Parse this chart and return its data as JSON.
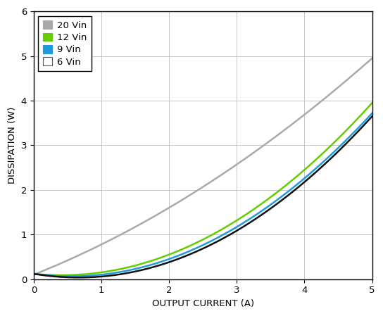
{
  "xlabel": "OUTPUT CURRENT (A)",
  "ylabel": "DISSIPATION (W)",
  "xlim": [
    0,
    5
  ],
  "ylim": [
    0,
    6
  ],
  "xticks": [
    0,
    1,
    2,
    3,
    4,
    5
  ],
  "yticks": [
    0,
    1,
    2,
    3,
    4,
    5,
    6
  ],
  "curves": [
    {
      "label": "20 Vin",
      "color": "#aaaaaa",
      "lw": 1.8,
      "p0": 0.1,
      "p2": 1.6,
      "p5": 4.95
    },
    {
      "label": "12 Vin",
      "color": "#66cc00",
      "lw": 1.8,
      "p0": 0.12,
      "p2": 0.55,
      "p5": 3.95
    },
    {
      "label": "9 Vin",
      "color": "#2299dd",
      "lw": 1.8,
      "p0": 0.12,
      "p2": 0.45,
      "p5": 3.72
    },
    {
      "label": "6 Vin",
      "color": "#111111",
      "lw": 1.8,
      "p0": 0.12,
      "p2": 0.38,
      "p5": 3.65
    }
  ],
  "legend_colors": [
    "#aaaaaa",
    "#66cc00",
    "#2299dd",
    "#ffffff"
  ],
  "legend_edge_colors": [
    "#aaaaaa",
    "#66cc00",
    "#2299dd",
    "#555555"
  ],
  "legend_labels": [
    "20 Vin",
    "12 Vin",
    "9 Vin",
    "6 Vin"
  ],
  "legend_loc": "upper left",
  "legend_fontsize": 9.5,
  "axis_fontsize": 9.5,
  "tick_fontsize": 9.5,
  "background_color": "#ffffff",
  "grid_color": "#bbbbbb"
}
